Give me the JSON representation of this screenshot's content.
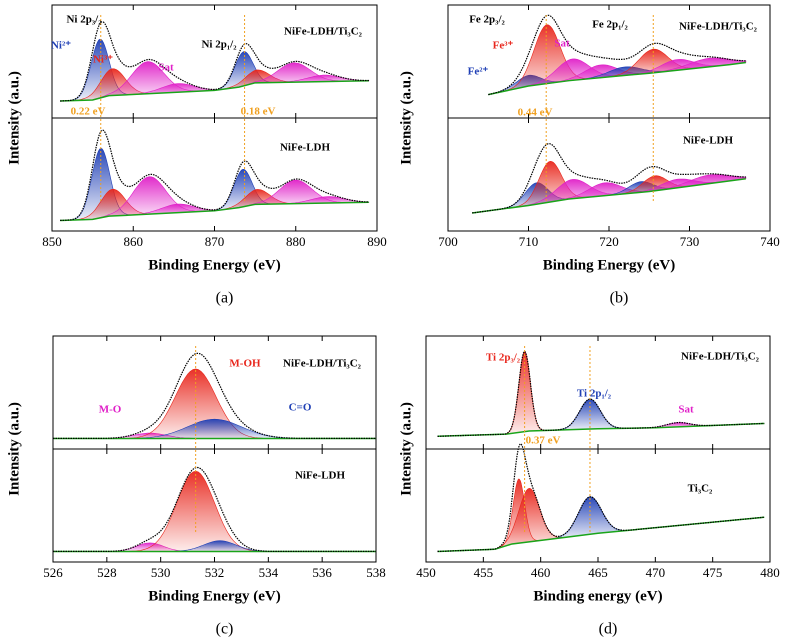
{
  "charts": [
    {
      "type": "xps",
      "caption": "(a)",
      "xlabel": "Binding Energy (eV)",
      "ylabel": "Intensity (a.u.)",
      "xlim": [
        850,
        890
      ],
      "xticks": [
        850,
        860,
        870,
        880,
        890
      ],
      "ylim": [
        0,
        100
      ],
      "reference_lines": [
        856,
        873.7
      ],
      "annotations": [
        {
          "text": "Ni 2p₃/₂",
          "color": "#000000"
        },
        {
          "text": "Ni²⁺",
          "color": "#1f3fb5"
        },
        {
          "text": "Ni³⁺",
          "color": "#e8261c"
        },
        {
          "text": "Sat",
          "color": "#e020c8"
        },
        {
          "text": "Ni 2p₁/₂",
          "color": "#000000"
        },
        {
          "text": "NiFe-LDH/Ti₃C₂",
          "color": "#000000"
        },
        {
          "text": "0.22 eV",
          "color": "#f0a020"
        },
        {
          "text": "0.18 eV",
          "color": "#f0a020"
        },
        {
          "text": "NiFe-LDH",
          "color": "#000000"
        }
      ],
      "subplots": [
        {
          "background": {
            "x": [
              851,
              855,
              857,
              870,
              873,
              875,
              889
            ],
            "y": [
              14,
              15,
              19,
              24,
              27,
              31,
              33
            ]
          },
          "peaks": [
            {
              "color": "#1f3fb5",
              "center": 855.9,
              "height": 55,
              "width": 1.1
            },
            {
              "color": "#e8261c",
              "center": 857.5,
              "height": 25,
              "width": 1.5
            },
            {
              "color": "#e020c8",
              "center": 861.8,
              "height": 30,
              "width": 2
            },
            {
              "color": "#e020c8",
              "center": 865.5,
              "height": 8,
              "width": 2
            },
            {
              "color": "#1f3fb5",
              "center": 873.6,
              "height": 32,
              "width": 1.1
            },
            {
              "color": "#e8261c",
              "center": 875.3,
              "height": 12,
              "width": 1.5
            },
            {
              "color": "#e020c8",
              "center": 879.8,
              "height": 18,
              "width": 2
            },
            {
              "color": "#e020c8",
              "center": 883.5,
              "height": 6,
              "width": 2
            }
          ]
        },
        {
          "background": {
            "x": [
              851,
              855,
              857,
              870,
              873,
              875,
              889
            ],
            "y": [
              8,
              9,
              12,
              17,
              20,
              23,
              25
            ]
          },
          "peaks": [
            {
              "color": "#1f3fb5",
              "center": 856,
              "height": 65,
              "width": 1.1
            },
            {
              "color": "#e8261c",
              "center": 857.5,
              "height": 25,
              "width": 1.5
            },
            {
              "color": "#e020c8",
              "center": 862,
              "height": 35,
              "width": 2
            },
            {
              "color": "#e020c8",
              "center": 865.5,
              "height": 8,
              "width": 2
            },
            {
              "color": "#1f3fb5",
              "center": 873.5,
              "height": 35,
              "width": 1.1
            },
            {
              "color": "#e8261c",
              "center": 875.3,
              "height": 14,
              "width": 1.5
            },
            {
              "color": "#e020c8",
              "center": 880,
              "height": 22,
              "width": 2
            },
            {
              "color": "#e020c8",
              "center": 884,
              "height": 6,
              "width": 2
            }
          ]
        }
      ]
    },
    {
      "type": "xps",
      "caption": "(b)",
      "xlabel": "Binding Energy (eV)",
      "ylabel": "Intensity (a.u.)",
      "xlim": [
        700,
        740
      ],
      "xticks": [
        700,
        710,
        720,
        730,
        740
      ],
      "ylim": [
        0,
        100
      ],
      "reference_lines": [
        712.2,
        725.5
      ],
      "annotations": [
        {
          "text": "Fe 2p₃/₂",
          "color": "#000000"
        },
        {
          "text": "Fe³⁺",
          "color": "#e8261c"
        },
        {
          "text": "Fe²⁺",
          "color": "#1f3fb5"
        },
        {
          "text": "Sat",
          "color": "#e020c8"
        },
        {
          "text": "Fe 2p₁/₂",
          "color": "#000000"
        },
        {
          "text": "NiFe-LDH/Ti₃C₂",
          "color": "#000000"
        },
        {
          "text": "0.44 eV",
          "color": "#f0a020"
        },
        {
          "text": "NiFe-LDH",
          "color": "#000000"
        }
      ],
      "subplots": [
        {
          "background": {
            "x": [
              705,
              710,
              715,
              725,
              735,
              737
            ],
            "y": [
              20,
              28,
              33,
              40,
              48,
              50
            ]
          },
          "peaks": [
            {
              "color": "#1f3fb5",
              "center": 710,
              "height": 10,
              "width": 1.5
            },
            {
              "color": "#e8261c",
              "center": 712.3,
              "height": 55,
              "width": 1.6
            },
            {
              "color": "#e020c8",
              "center": 715.5,
              "height": 20,
              "width": 2
            },
            {
              "color": "#e020c8",
              "center": 719,
              "height": 12,
              "width": 2
            },
            {
              "color": "#1f3fb5",
              "center": 722,
              "height": 8,
              "width": 2
            },
            {
              "color": "#e8261c",
              "center": 725.5,
              "height": 22,
              "width": 1.8
            },
            {
              "color": "#e020c8",
              "center": 728.5,
              "height": 10,
              "width": 2
            },
            {
              "color": "#e020c8",
              "center": 732.5,
              "height": 8,
              "width": 2.5
            }
          ]
        },
        {
          "background": {
            "x": [
              703,
              710,
              715,
              725,
              735,
              737
            ],
            "y": [
              15,
              22,
              28,
              35,
              45,
              47
            ]
          },
          "peaks": [
            {
              "color": "#1f3fb5",
              "center": 711,
              "height": 20,
              "width": 1.4
            },
            {
              "color": "#e8261c",
              "center": 712.7,
              "height": 38,
              "width": 1.4
            },
            {
              "color": "#e020c8",
              "center": 715.5,
              "height": 18,
              "width": 2
            },
            {
              "color": "#e020c8",
              "center": 719.5,
              "height": 12,
              "width": 2
            },
            {
              "color": "#1f3fb5",
              "center": 724,
              "height": 10,
              "width": 1.5
            },
            {
              "color": "#e8261c",
              "center": 725.7,
              "height": 14,
              "width": 1.5
            },
            {
              "color": "#e020c8",
              "center": 728.5,
              "height": 8,
              "width": 2
            },
            {
              "color": "#e020c8",
              "center": 732.5,
              "height": 8,
              "width": 2.5
            }
          ]
        }
      ]
    },
    {
      "type": "xps",
      "caption": "(c)",
      "xlabel": "Binding Energy (eV)",
      "ylabel": "Intensity (a.u.)",
      "xlim": [
        526,
        538
      ],
      "xticks": [
        526,
        528,
        530,
        532,
        534,
        536,
        538
      ],
      "ylim": [
        0,
        100
      ],
      "reference_lines": [
        531.3
      ],
      "annotations": [
        {
          "text": "M-OH",
          "color": "#e8261c"
        },
        {
          "text": "M-O",
          "color": "#e020c8"
        },
        {
          "text": "C=O",
          "color": "#1f3fb5"
        },
        {
          "text": "NiFe-LDH/Ti₃C₂",
          "color": "#000000"
        },
        {
          "text": "NiFe-LDH",
          "color": "#000000"
        }
      ],
      "subplots": [
        {
          "background": {
            "x": [
              526,
              538
            ],
            "y": [
              8,
              8
            ]
          },
          "peaks": [
            {
              "color": "#e020c8",
              "center": 529.6,
              "height": 5,
              "width": 0.6
            },
            {
              "color": "#e8261c",
              "center": 531.3,
              "height": 65,
              "width": 0.75
            },
            {
              "color": "#1f3fb5",
              "center": 532,
              "height": 18,
              "width": 1
            }
          ]
        },
        {
          "background": {
            "x": [
              526,
              538
            ],
            "y": [
              8,
              8
            ]
          },
          "peaks": [
            {
              "color": "#e020c8",
              "center": 529.6,
              "height": 8,
              "width": 0.5
            },
            {
              "color": "#e8261c",
              "center": 531.3,
              "height": 75,
              "width": 0.7
            },
            {
              "color": "#1f3fb5",
              "center": 532.2,
              "height": 10,
              "width": 0.6
            }
          ]
        }
      ]
    },
    {
      "type": "xps",
      "caption": "(d)",
      "xlabel": "Binding energy (eV)",
      "ylabel": "Intensity (a.u.)",
      "xlim": [
        450,
        480
      ],
      "xticks": [
        450,
        455,
        460,
        465,
        470,
        475,
        480
      ],
      "ylim": [
        0,
        100
      ],
      "reference_lines": [
        458.6,
        464.3
      ],
      "annotations": [
        {
          "text": "Ti 2p₃/₂",
          "color": "#e8261c"
        },
        {
          "text": "Ti 2p₁/₂",
          "color": "#1f3fb5"
        },
        {
          "text": "Sat",
          "color": "#e020c8"
        },
        {
          "text": "NiFe-LDH/Ti₃C₂",
          "color": "#000000"
        },
        {
          "text": "0.37 eV",
          "color": "#f0a020"
        },
        {
          "text": "Ti₃C₂",
          "color": "#000000"
        }
      ],
      "subplots": [
        {
          "background": {
            "x": [
              451,
              457,
              459,
              465,
              470,
              479.5
            ],
            "y": [
              10,
              12,
              15,
              17,
              18,
              22
            ]
          },
          "peaks": [
            {
              "color": "#e8261c",
              "center": 458.6,
              "height": 75,
              "width": 0.5
            },
            {
              "color": "#1f3fb5",
              "center": 464.3,
              "height": 28,
              "width": 0.9
            },
            {
              "color": "#e020c8",
              "center": 472,
              "height": 4,
              "width": 1
            }
          ]
        },
        {
          "background": {
            "x": [
              451,
              456,
              457.5,
              465,
              479.5
            ],
            "y": [
              8,
              10,
              15,
              25,
              40
            ]
          },
          "peaks": [
            {
              "color": "#e8261c",
              "center": 458.1,
              "height": 60,
              "width": 0.5
            },
            {
              "color": "#e8261c",
              "center": 459,
              "height": 50,
              "width": 0.9
            },
            {
              "color": "#1f3fb5",
              "center": 464.3,
              "height": 35,
              "width": 1
            }
          ]
        }
      ]
    }
  ]
}
